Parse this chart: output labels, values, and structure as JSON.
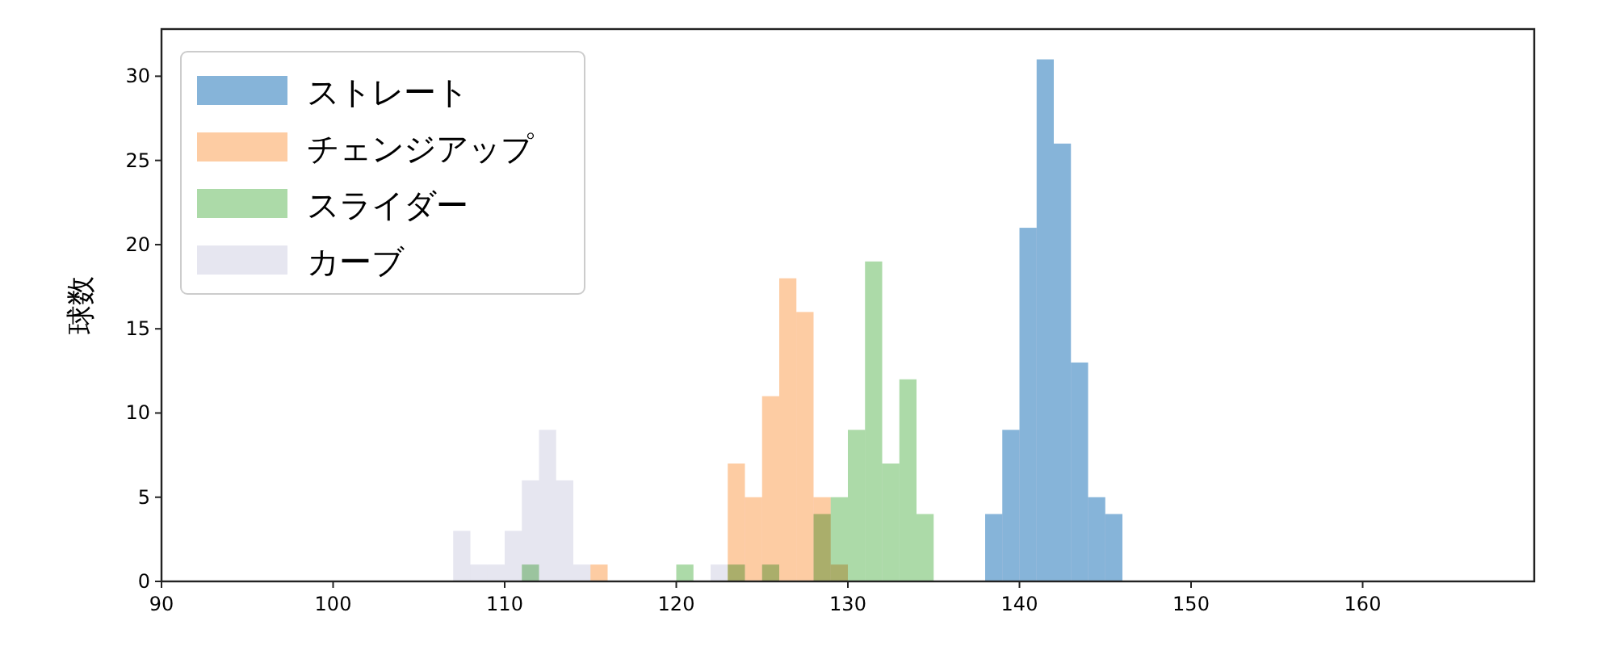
{
  "chart_data": {
    "type": "histogram",
    "ylabel": "球数",
    "xlim": [
      90,
      170
    ],
    "ylim": [
      0,
      32.8
    ],
    "xticks": [
      90,
      100,
      110,
      120,
      130,
      140,
      150,
      160
    ],
    "yticks": [
      0,
      5,
      10,
      15,
      20,
      25,
      30
    ],
    "grid": false,
    "legend": "top left",
    "bins": [
      107,
      108,
      109,
      110,
      111,
      112,
      113,
      114,
      115,
      116,
      117,
      118,
      119,
      120,
      121,
      122,
      123,
      124,
      125,
      126,
      127,
      128,
      129,
      130,
      131,
      132,
      133,
      134,
      135,
      136,
      137,
      138,
      139,
      140,
      141,
      142,
      143,
      144,
      145,
      146
    ],
    "series": [
      {
        "name": "ストレート",
        "color": "#86b4d9",
        "values": [
          0,
          0,
          0,
          0,
          0,
          0,
          0,
          0,
          0,
          0,
          0,
          0,
          0,
          0,
          0,
          0,
          0,
          0,
          0,
          0,
          0,
          0,
          0,
          0,
          0,
          0,
          0,
          0,
          0,
          0,
          0,
          4,
          9,
          21,
          31,
          26,
          13,
          5,
          4
        ]
      },
      {
        "name": "チェンジアップ",
        "color": "#fdcca3",
        "values": [
          0,
          0,
          0,
          0,
          0,
          0,
          0,
          0,
          1,
          0,
          0,
          0,
          0,
          0,
          0,
          0,
          7,
          5,
          11,
          18,
          16,
          5,
          1,
          0,
          0,
          0,
          0,
          0,
          0,
          0,
          0,
          0,
          0,
          0,
          0,
          0,
          0,
          0,
          0
        ]
      },
      {
        "name": "スライダー",
        "color": "#acdaa8",
        "values": [
          0,
          0,
          0,
          0,
          1,
          0,
          0,
          0,
          0,
          0,
          0,
          0,
          0,
          1,
          0,
          0,
          1,
          0,
          1,
          0,
          0,
          4,
          5,
          9,
          19,
          7,
          12,
          4,
          0,
          0,
          0,
          0,
          0,
          0,
          0,
          0,
          0,
          0,
          0
        ]
      },
      {
        "name": "カーブ",
        "color": "#e6e6f0",
        "values": [
          3,
          1,
          1,
          3,
          6,
          9,
          6,
          1,
          0,
          0,
          0,
          0,
          0,
          0,
          0,
          1,
          0,
          0,
          0,
          0,
          0,
          0,
          0,
          0,
          0,
          0,
          0,
          0,
          0,
          0,
          0,
          0,
          0,
          0,
          0,
          0,
          0,
          0,
          0
        ]
      }
    ]
  }
}
